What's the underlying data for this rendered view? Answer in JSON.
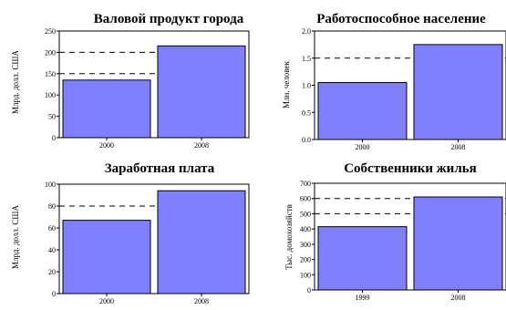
{
  "chart_data": [
    {
      "type": "bar",
      "title": "Валовой продукт города",
      "ylabel": "Млрд. долл. США",
      "xlabel": "",
      "categories": [
        "2000",
        "2008"
      ],
      "values": [
        135,
        215
      ],
      "ylim": [
        0,
        250
      ],
      "yticks": [
        "0",
        "50",
        "100",
        "150",
        "200",
        "250"
      ],
      "dashed_gridlines": [
        150,
        200
      ],
      "bar_color": "#8080ff",
      "grid": "dashed"
    },
    {
      "type": "bar",
      "title": "Работоспособное население",
      "ylabel": "Млн. человек",
      "xlabel": "",
      "categories": [
        "2000",
        "2008"
      ],
      "values": [
        1.05,
        1.75
      ],
      "ylim": [
        0,
        2.0
      ],
      "yticks": [
        "0.0",
        "0.5",
        "1.0",
        "1.5",
        "2.0"
      ],
      "dashed_gridlines": [
        1.5
      ],
      "bar_color": "#8080ff",
      "grid": "dashed"
    },
    {
      "type": "bar",
      "title": "Заработная плата",
      "ylabel": "Млрд. долл. США",
      "xlabel": "",
      "categories": [
        "2000",
        "2008"
      ],
      "values": [
        67,
        94
      ],
      "ylim": [
        0,
        100
      ],
      "yticks": [
        "0",
        "20",
        "40",
        "60",
        "80",
        "100"
      ],
      "dashed_gridlines": [
        80
      ],
      "bar_color": "#8080ff",
      "grid": "dashed"
    },
    {
      "type": "bar",
      "title": "Собственники жилья",
      "ylabel": "Тыс. домохозяйств",
      "xlabel": "",
      "categories": [
        "1999",
        "2008"
      ],
      "values": [
        415,
        610
      ],
      "ylim": [
        0,
        700
      ],
      "yticks": [
        "0",
        "100",
        "200",
        "300",
        "400",
        "500",
        "600",
        "700"
      ],
      "dashed_gridlines": [
        500,
        600
      ],
      "bar_color": "#8080ff",
      "grid": "dashed"
    }
  ]
}
